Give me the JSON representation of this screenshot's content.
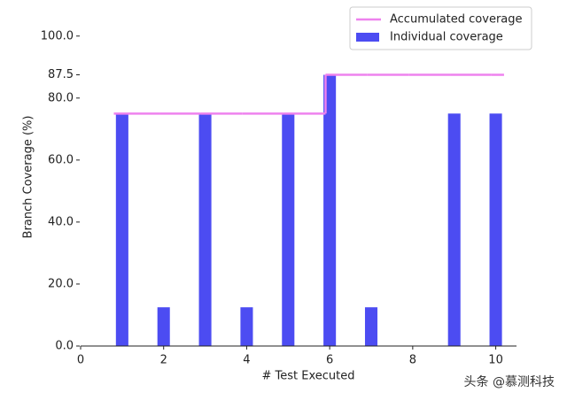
{
  "chart_data": {
    "type": "bar",
    "x_label": "# Test Executed",
    "y_label": "Branch Coverage (%)",
    "x": [
      1,
      2,
      3,
      4,
      5,
      6,
      7,
      8,
      9,
      10
    ],
    "series": [
      {
        "name": "Individual coverage",
        "color": "#4c4cf2",
        "values": [
          75,
          12.5,
          75,
          12.5,
          75,
          87.5,
          12.5,
          0,
          75,
          75
        ]
      },
      {
        "name": "Accumulated coverage",
        "color": "#ee82ee",
        "values": [
          75,
          75,
          75,
          75,
          75,
          87.5,
          87.5,
          87.5,
          87.5,
          87.5
        ]
      }
    ],
    "xlim": [
      0,
      10.5
    ],
    "xticks": [
      0,
      2,
      4,
      6,
      8,
      10
    ],
    "ylim": [
      0,
      100
    ],
    "yticks": [
      {
        "value": 0,
        "label": "0.0"
      },
      {
        "value": 20,
        "label": "20.0"
      },
      {
        "value": 40,
        "label": "40.0"
      },
      {
        "value": 60,
        "label": "60.0"
      },
      {
        "value": 80,
        "label": "80.0"
      },
      {
        "value": 87.5,
        "label": "87.5"
      },
      {
        "value": 100,
        "label": "100.0"
      }
    ],
    "legend": "upper right",
    "watermark": "头条 @慕测科技"
  }
}
